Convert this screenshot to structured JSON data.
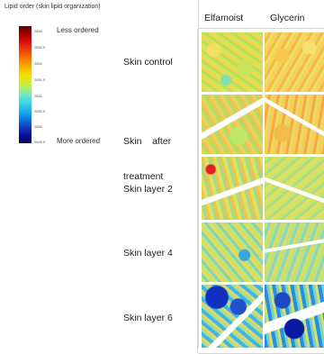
{
  "figure": {
    "title": "Lipid order (skin lipid organization)",
    "colorbar": {
      "top_label": "Less ordered",
      "bottom_label": "More ordered",
      "ticks": [
        "2853",
        "2852.5",
        "2852",
        "2851.5",
        "2851",
        "2850.5",
        "2850",
        "2849.5"
      ]
    },
    "columns": [
      "Elfamoist",
      "Glycerin"
    ],
    "rows": [
      {
        "label_line1": "Skin control",
        "label_line2": ""
      },
      {
        "label_line1": "Skin    after",
        "label_line2": "treatment"
      },
      {
        "label_line1": "Skin layer 2",
        "label_line2": ""
      },
      {
        "label_line1": "Skin layer 4",
        "label_line2": ""
      },
      {
        "label_line1": "Skin layer 6",
        "label_line2": ""
      }
    ]
  }
}
